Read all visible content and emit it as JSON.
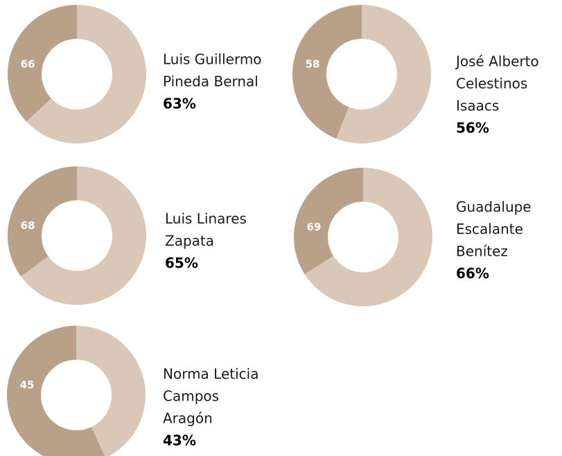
{
  "chart_data": [
    {
      "type": "donut",
      "name_lines": [
        "Luis Guillermo",
        "Pineda Bernal"
      ],
      "count": 66,
      "value": 63,
      "value_label": "63%",
      "color": "#d9c8b8",
      "rest_color": "#b9a089"
    },
    {
      "type": "donut",
      "name_lines": [
        "José Alberto",
        "Celestinos",
        "Isaacs"
      ],
      "count": 58,
      "value": 56,
      "value_label": "56%",
      "color": "#d9c8b8",
      "rest_color": "#b9a089"
    },
    {
      "type": "donut",
      "name_lines": [
        "Luis Linares",
        "Zapata"
      ],
      "count": 68,
      "value": 65,
      "value_label": "65%",
      "color": "#d9c8b8",
      "rest_color": "#b9a089"
    },
    {
      "type": "donut",
      "name_lines": [
        "Guadalupe",
        "Escalante",
        "Benítez"
      ],
      "count": 69,
      "value": 66,
      "value_label": "66%",
      "color": "#d9c8b8",
      "rest_color": "#b9a089"
    },
    {
      "type": "donut",
      "name_lines": [
        "Norma Leticia",
        "Campos",
        "Aragón"
      ],
      "count": 45,
      "value": 43,
      "value_label": "43%",
      "color": "#d9c8b8",
      "rest_color": "#b9a089"
    }
  ]
}
